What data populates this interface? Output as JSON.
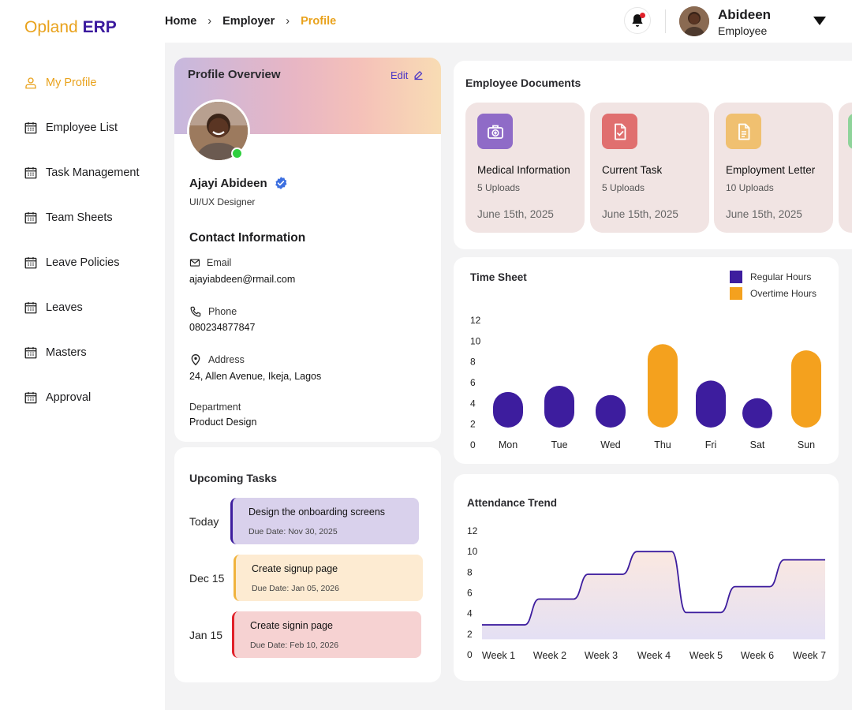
{
  "brand": {
    "part1": "Opland",
    "part2": "ERP"
  },
  "sidebar": {
    "items": [
      {
        "label": "My Profile",
        "active": true,
        "icon": "user-icon"
      },
      {
        "label": "Employee List",
        "active": false,
        "icon": "calendar-icon"
      },
      {
        "label": "Task Management",
        "active": false,
        "icon": "calendar-icon"
      },
      {
        "label": "Team Sheets",
        "active": false,
        "icon": "calendar-icon"
      },
      {
        "label": "Leave Policies",
        "active": false,
        "icon": "calendar-icon"
      },
      {
        "label": "Leaves",
        "active": false,
        "icon": "calendar-icon"
      },
      {
        "label": "Masters",
        "active": false,
        "icon": "calendar-icon"
      },
      {
        "label": "Approval",
        "active": false,
        "icon": "calendar-icon"
      }
    ]
  },
  "header": {
    "breadcrumb": [
      "Home",
      "Employer",
      "Profile"
    ],
    "user": {
      "name": "Abideen",
      "role": "Employee"
    }
  },
  "profile": {
    "title": "Profile Overview",
    "edit_label": "Edit",
    "name": "Ajayi Abideen",
    "role": "UI/UX Designer",
    "contact_title": "Contact Information",
    "email_label": "Email",
    "email": "ajayiabdeen@rmail.com",
    "phone_label": "Phone",
    "phone": "080234877847",
    "address_label": "Address",
    "address": "24, Allen Avenue, Ikeja, Lagos",
    "department_label": "Department",
    "department": "Product Design"
  },
  "tasks": {
    "title": "Upcoming Tasks",
    "items": [
      {
        "date": "Today",
        "title": "Design the onboarding screens",
        "due": "Due Date: Nov 30, 2025",
        "bg": "#d9d1ec",
        "border": "#3d1d9e"
      },
      {
        "date": "Dec 15",
        "title": "Create signup page",
        "due": "Due Date: Jan 05, 2026",
        "bg": "#fdebd2",
        "border": "#f0b33d"
      },
      {
        "date": "Jan 15",
        "title": "Create signin page",
        "due": "Due Date: Feb 10, 2026",
        "bg": "#f6d2d2",
        "border": "#e0222a"
      }
    ]
  },
  "documents": {
    "title": "Employee Documents",
    "items": [
      {
        "name": "Medical Information",
        "uploads": "5 Uploads",
        "date": "June 15th, 2025",
        "icon": "medical-bag-icon",
        "color": "#8f6bc7"
      },
      {
        "name": "Current Task",
        "uploads": "5 Uploads",
        "date": "June 15th, 2025",
        "icon": "document-check-icon",
        "color": "#e06f6f"
      },
      {
        "name": "Employment Letter",
        "uploads": "10 Uploads",
        "date": "June 15th, 2025",
        "icon": "document-text-icon",
        "color": "#f0c070"
      }
    ]
  },
  "timesheet": {
    "title": "Time Sheet",
    "legend": [
      {
        "name": "Regular Hours",
        "color": "#3d1d9e"
      },
      {
        "name": "Overtime Hours",
        "color": "#f4a11e"
      }
    ]
  },
  "attendance": {
    "title": "Attendance Trend"
  },
  "chart_data": [
    {
      "type": "bar",
      "title": "Time Sheet",
      "categories": [
        "Mon",
        "Tue",
        "Wed",
        "Thu",
        "Fri",
        "Sat",
        "Sun"
      ],
      "values": [
        5.1,
        5.7,
        4.8,
        9.7,
        6.2,
        4.5,
        9.1
      ],
      "kinds": [
        "Regular Hours",
        "Regular Hours",
        "Regular Hours",
        "Overtime Hours",
        "Regular Hours",
        "Regular Hours",
        "Overtime Hours"
      ],
      "yticks": [
        0,
        2,
        4,
        6,
        8,
        10,
        12
      ],
      "ylim": [
        0,
        12
      ],
      "grid": false,
      "legend": "top-right"
    },
    {
      "type": "area",
      "title": "Attendance Trend",
      "categories": [
        "Week 1",
        "Week 2",
        "Week 3",
        "Week 4",
        "Week 5",
        "Week 6",
        "Week 7"
      ],
      "values": [
        2.9,
        5.4,
        7.8,
        10.0,
        4.1,
        6.6,
        9.2
      ],
      "yticks": [
        0,
        2,
        4,
        6,
        8,
        10,
        12
      ],
      "ylim": [
        0,
        12
      ],
      "grid": false
    }
  ]
}
